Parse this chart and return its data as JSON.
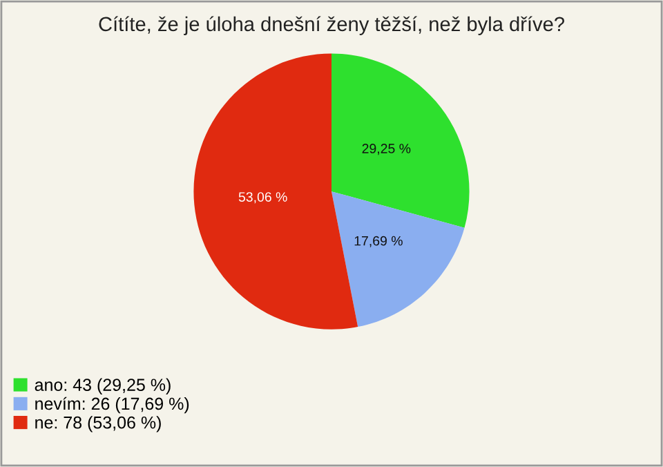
{
  "chart_data": {
    "type": "pie",
    "title": "Cítíte, že je úloha dnešní ženy těžší, než byla dříve?",
    "categories": [
      "ano: 43 (29,25 %)",
      "nevím: 26 (17,69 %)",
      "ne: 78 (53,06 %)"
    ],
    "values": [
      29.25,
      17.69,
      53.06
    ],
    "value_labels": [
      "29,25 %",
      "17,69 %",
      "53,06 %"
    ],
    "colors": [
      "#2ee02e",
      "#8aaef0",
      "#e02a10"
    ],
    "legend": "bottom left"
  }
}
